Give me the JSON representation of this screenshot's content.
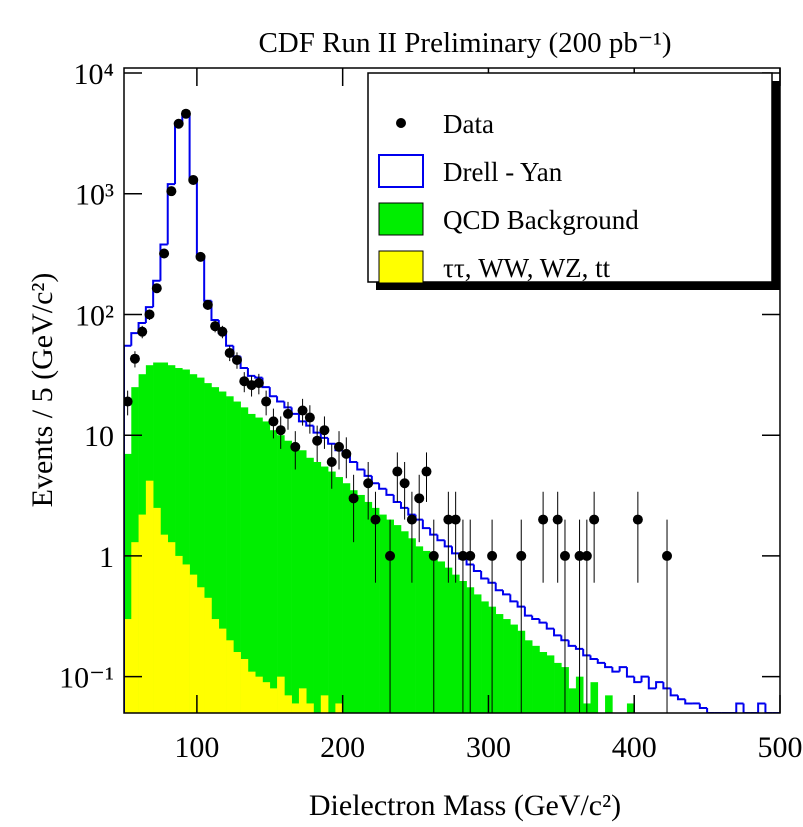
{
  "chart_data": {
    "type": "histogram",
    "title": "CDF Run II Preliminary (200 pb⁻¹)",
    "xlabel": "Dielectron Mass (GeV/c²)",
    "ylabel": "Events / 5 (GeV/c²)",
    "log_y": true,
    "legend": "top right",
    "xlim": [
      50,
      500
    ],
    "xticks": [
      100,
      200,
      300,
      400,
      500
    ],
    "ylim": [
      0.05,
      11000
    ],
    "yticks": [
      {
        "value": 0.1,
        "label": "10⁻¹"
      },
      1,
      10,
      {
        "value": 100,
        "label": "10²"
      },
      {
        "value": 1000,
        "label": "10³"
      },
      {
        "value": 10000,
        "label": "10⁴"
      }
    ],
    "bins": [
      50,
      55,
      60,
      65,
      70,
      75,
      80,
      85,
      90,
      95,
      100,
      105,
      110,
      115,
      120,
      125,
      130,
      135,
      140,
      145,
      150,
      155,
      160,
      165,
      170,
      175,
      180,
      185,
      190,
      195,
      200,
      205,
      210,
      215,
      220,
      225,
      230,
      235,
      240,
      245,
      250,
      255,
      260,
      265,
      270,
      275,
      280,
      285,
      290,
      295,
      300,
      305,
      310,
      315,
      320,
      325,
      330,
      335,
      340,
      345,
      350,
      355,
      360,
      365,
      370,
      375,
      380,
      385,
      390,
      395,
      400,
      405,
      410,
      415,
      420,
      425,
      430,
      435,
      440,
      445,
      450,
      455,
      460,
      465,
      470,
      475,
      480,
      485,
      490,
      495,
      500
    ],
    "points": {
      "name": "Data",
      "color": "#000000",
      "x": [
        52.5,
        57.5,
        62.5,
        67.5,
        72.5,
        77.5,
        82.5,
        87.5,
        92.5,
        97.5,
        102.5,
        107.5,
        112.5,
        117.5,
        122.5,
        127.5,
        132.5,
        137.5,
        142.5,
        147.5,
        152.5,
        157.5,
        162.5,
        167.5,
        172.5,
        177.5,
        182.5,
        187.5,
        192.5,
        197.5,
        202.5,
        207.5,
        217.5,
        222.5,
        232.5,
        237.5,
        242.5,
        247.5,
        252.5,
        257.5,
        262.5,
        272.5,
        277.5,
        282.5,
        287.5,
        302.5,
        322.5,
        337.5,
        347.5,
        352.5,
        362.5,
        367.5,
        372.5,
        402.5,
        422.5
      ],
      "values": [
        19,
        43,
        72,
        100,
        165,
        320,
        1050,
        3800,
        4600,
        1300,
        300,
        120,
        80,
        72,
        48,
        42,
        28,
        26,
        27,
        19,
        13,
        11,
        15,
        8,
        16,
        14,
        9,
        11,
        6,
        8,
        7,
        3,
        4,
        2,
        1,
        5,
        4,
        2,
        3,
        5,
        1,
        2,
        2,
        1,
        1,
        1,
        1,
        2,
        2,
        1,
        1,
        1,
        2,
        2,
        1
      ],
      "errors": [
        4.4,
        6.6,
        8.5,
        10,
        13,
        18,
        32,
        62,
        68,
        36,
        17,
        11,
        8.9,
        8.5,
        6.9,
        6.5,
        5.3,
        5.1,
        5.2,
        4.4,
        3.6,
        3.3,
        3.9,
        2.8,
        4,
        3.7,
        3,
        3.3,
        2.4,
        2.8,
        2.6,
        1.7,
        2,
        1.4,
        1,
        2.2,
        2,
        1.4,
        1.7,
        2.2,
        1,
        1.4,
        1.4,
        1,
        1,
        1,
        1,
        1.4,
        1.4,
        1,
        1,
        1,
        1.4,
        1.4,
        1
      ]
    },
    "series": [
      {
        "name": "Drell - Yan",
        "color": "#0000ee",
        "style": "outline",
        "values": [
          55,
          70,
          85,
          115,
          190,
          380,
          1200,
          3800,
          4500,
          1300,
          300,
          130,
          90,
          70,
          55,
          45,
          36,
          31,
          30,
          25,
          21,
          19,
          17,
          15,
          13,
          12,
          10.5,
          9.5,
          8.5,
          7.5,
          7,
          6,
          5.2,
          4.6,
          4,
          3.6,
          3.2,
          2.8,
          2.5,
          2.2,
          2,
          1.7,
          1.5,
          1.35,
          1.2,
          1.05,
          0.95,
          0.85,
          0.75,
          0.65,
          0.6,
          0.52,
          0.48,
          0.42,
          0.38,
          0.32,
          0.3,
          0.28,
          0.25,
          0.22,
          0.2,
          0.18,
          0.17,
          0.15,
          0.14,
          0.13,
          0.12,
          0.11,
          0.12,
          0.1,
          0.09,
          0.1,
          0.08,
          0.09,
          0.08,
          0.07,
          0.065,
          0.06,
          0.06,
          0.055,
          0.05,
          0.05,
          0.05,
          0.05,
          0.06,
          0.05,
          0.05,
          0.06,
          0.05,
          0.05
        ]
      },
      {
        "name": "QCD Background",
        "color": "#00ee00",
        "style": "fill",
        "values": [
          7,
          25,
          32,
          38,
          40,
          40,
          38,
          36,
          35,
          32,
          30,
          27,
          25,
          23,
          21,
          19,
          17,
          15,
          14,
          13,
          11,
          10,
          9,
          8,
          7.5,
          6.5,
          6,
          5.5,
          5,
          4.5,
          4,
          3.5,
          3.2,
          2.8,
          2.5,
          2.2,
          2,
          1.8,
          1.6,
          1.4,
          1.2,
          1.1,
          1,
          0.9,
          0.8,
          0.7,
          0.62,
          0.55,
          0.48,
          0.42,
          0.38,
          0.33,
          0.3,
          0.27,
          0.24,
          0.2,
          0.18,
          0.16,
          0.15,
          0.13,
          0.12,
          0.08,
          0.1,
          0.06,
          0.09,
          0.05,
          0.07,
          0.05,
          0.05,
          0.06,
          0.05,
          0,
          0,
          0,
          0,
          0,
          0,
          0,
          0,
          0,
          0,
          0,
          0,
          0,
          0,
          0,
          0,
          0,
          0,
          0
        ]
      },
      {
        "name": "ττ, WW, WZ, tt",
        "color": "#ffff00",
        "style": "fill",
        "values": [
          0.3,
          1.3,
          2.2,
          4.2,
          2.5,
          1.5,
          1.3,
          1,
          0.85,
          0.7,
          0.55,
          0.45,
          0.3,
          0.25,
          0.2,
          0.16,
          0.14,
          0.11,
          0.1,
          0.09,
          0.08,
          0.1,
          0.07,
          0.06,
          0.08,
          0.06,
          0.05,
          0.07,
          0.05,
          0.06,
          0,
          0,
          0,
          0,
          0,
          0,
          0,
          0,
          0,
          0,
          0,
          0,
          0,
          0,
          0,
          0,
          0,
          0,
          0,
          0,
          0,
          0,
          0,
          0,
          0,
          0,
          0,
          0,
          0,
          0,
          0,
          0,
          0,
          0,
          0,
          0,
          0,
          0,
          0,
          0,
          0,
          0,
          0,
          0,
          0,
          0,
          0,
          0,
          0,
          0,
          0,
          0,
          0,
          0,
          0,
          0,
          0,
          0,
          0,
          0
        ]
      }
    ]
  }
}
